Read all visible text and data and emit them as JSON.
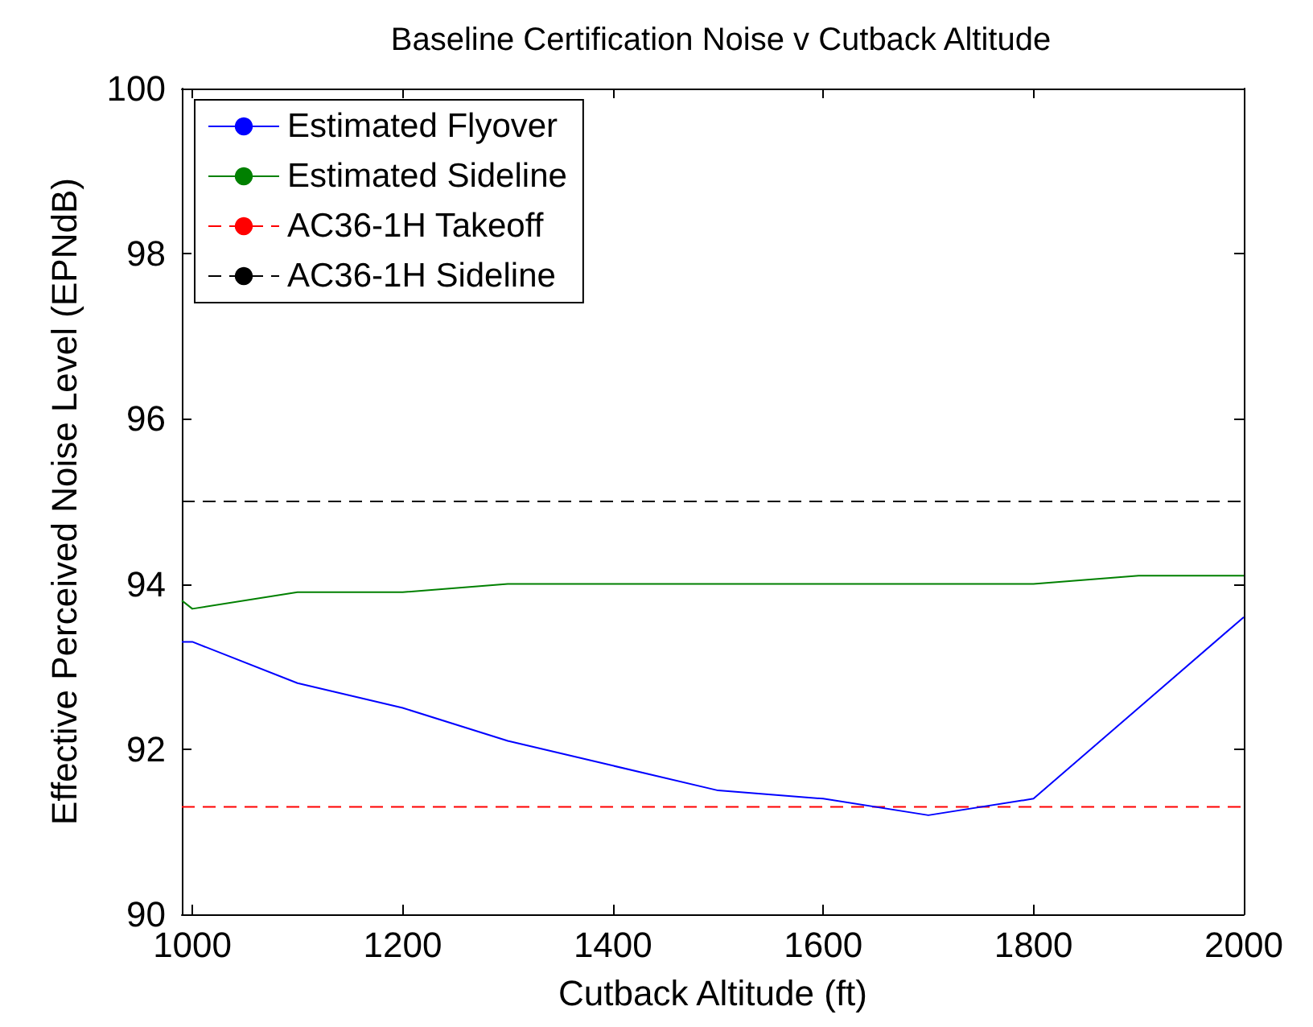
{
  "chart_data": {
    "type": "line",
    "title": "Baseline Certification Noise v Cutback Altitude",
    "xlabel": "Cutback Altitude (ft)",
    "ylabel": "Effective Perceived Noise Level (EPNdB)",
    "x": [
      990,
      1000,
      1100,
      1200,
      1300,
      1400,
      1500,
      1600,
      1700,
      1800,
      1900,
      2000
    ],
    "series": [
      {
        "name": "Estimated Flyover",
        "color": "#0000ff",
        "values": [
          93.3,
          93.3,
          92.8,
          92.5,
          92.1,
          91.8,
          91.5,
          91.4,
          91.2,
          91.4,
          92.5,
          93.6
        ]
      },
      {
        "name": "Estimated Sideline",
        "color": "#008000",
        "values": [
          93.8,
          93.7,
          93.9,
          93.9,
          94.0,
          94.0,
          94.0,
          94.0,
          94.0,
          94.0,
          94.1,
          94.1
        ]
      }
    ],
    "ref_lines": [
      {
        "axis": "y",
        "value": 91.3,
        "label": "AC36-1H Takeoff",
        "color": "#ff0000",
        "line_style": "dashed"
      },
      {
        "axis": "y",
        "value": 95,
        "label": "AC36-1H Sideline",
        "color": "#000000",
        "line_style": "dashed"
      }
    ],
    "xlim": [
      990,
      2000
    ],
    "xticks": [
      1000,
      1200,
      1400,
      1600,
      1800,
      2000
    ],
    "ylim": [
      90,
      100
    ],
    "yticks": [
      90,
      92,
      94,
      96,
      98,
      100
    ],
    "grid": false,
    "legend": "top left",
    "marker": "none",
    "line_style": "solid"
  }
}
